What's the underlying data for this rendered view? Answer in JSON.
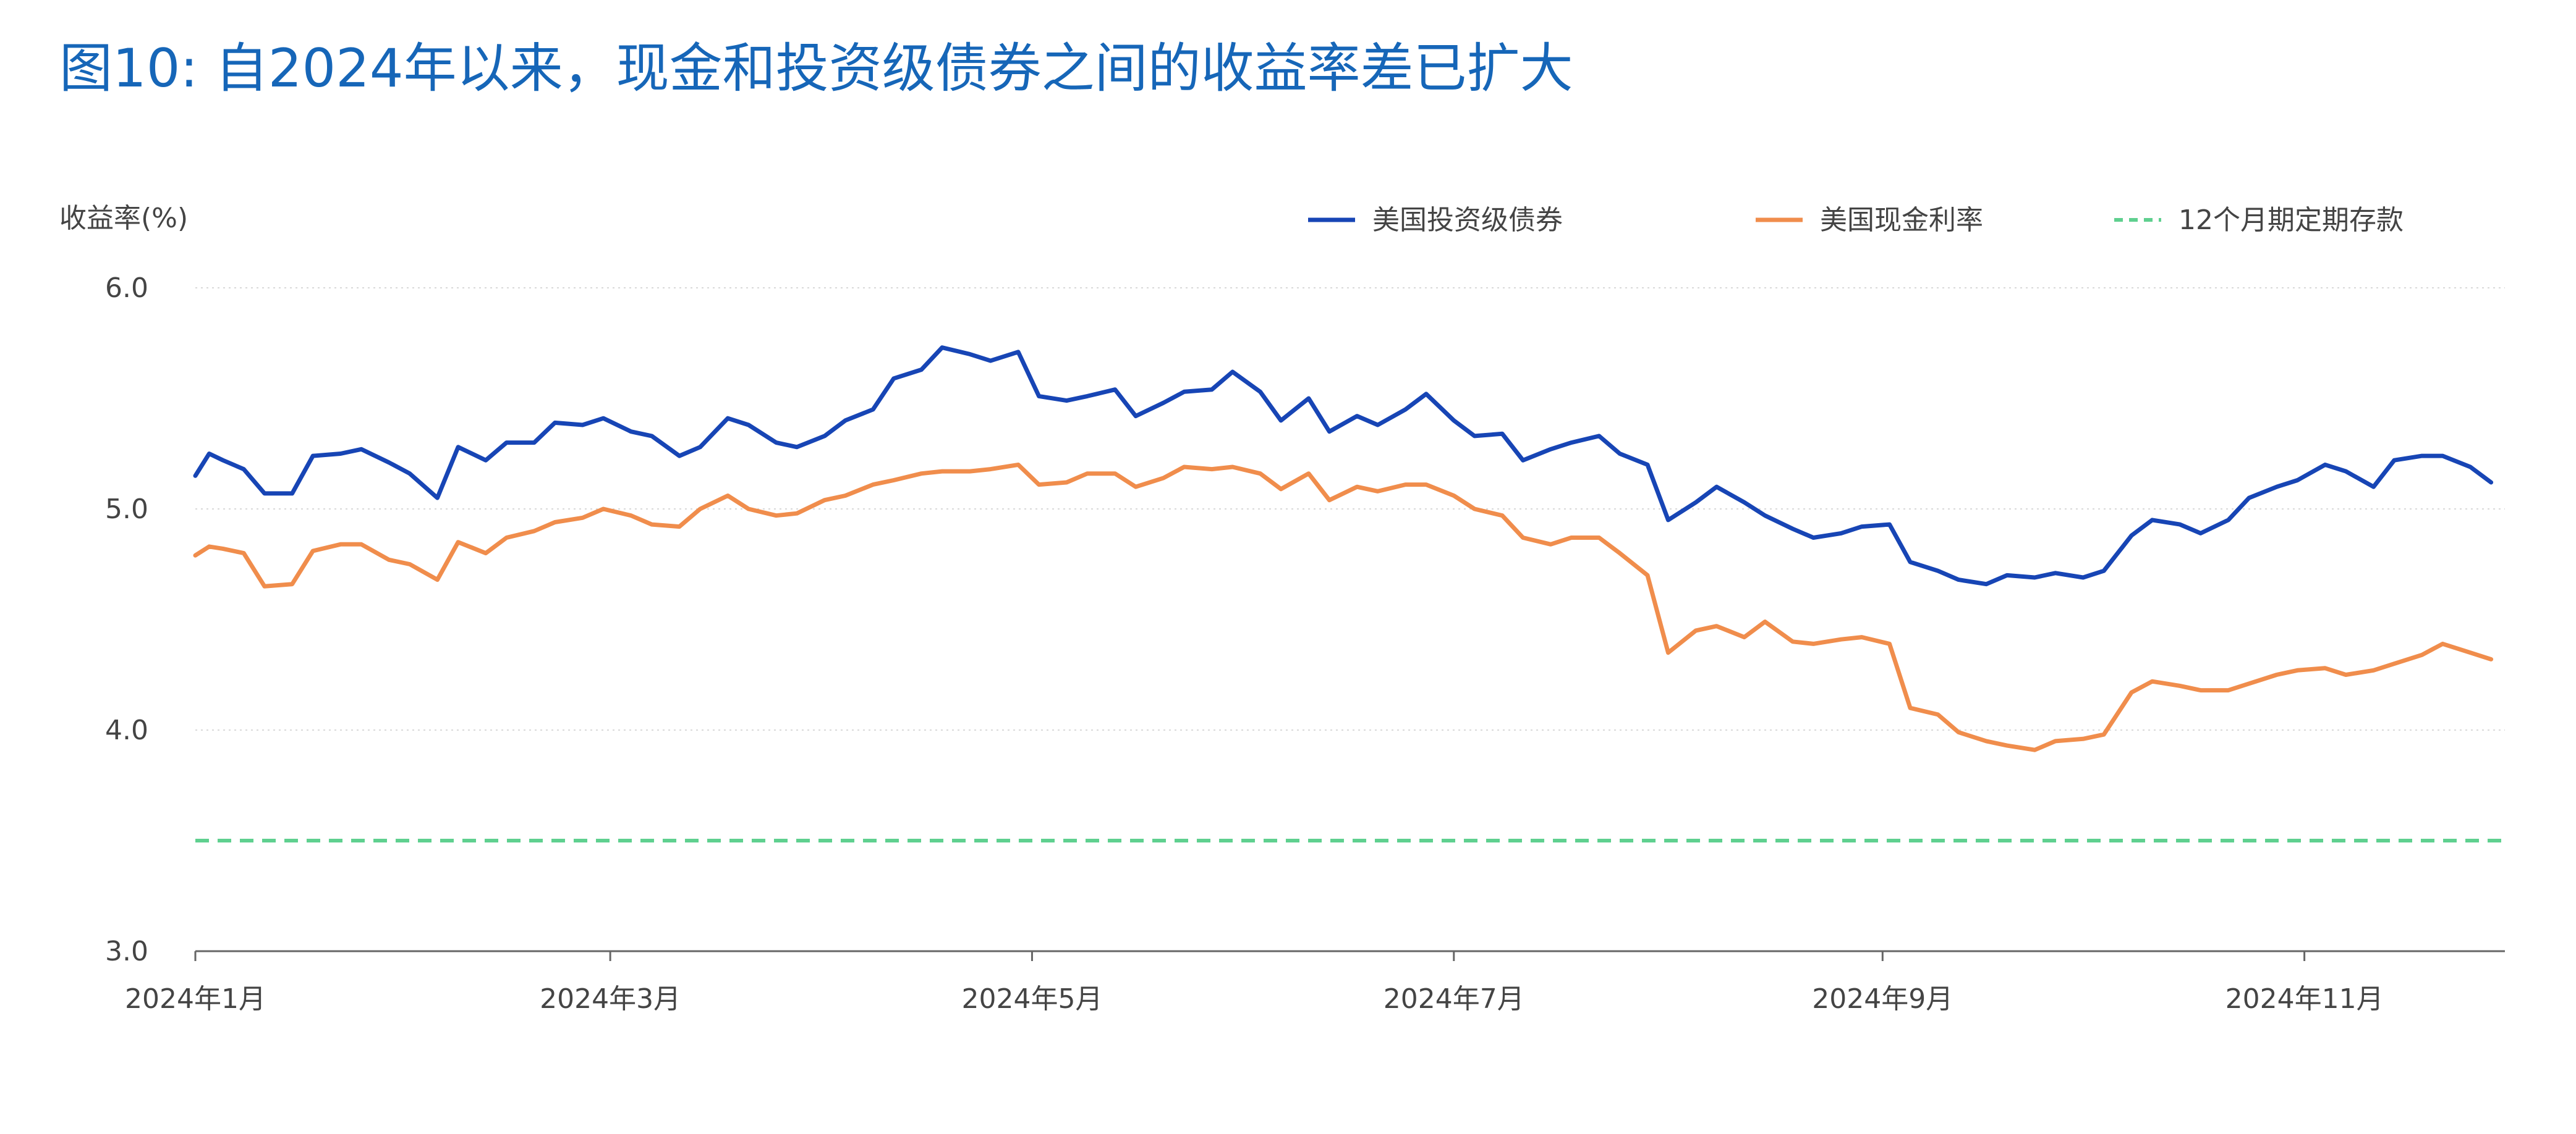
{
  "title": "图10: 自2024年以来，现金和投资级债券之间的收益率差已扩大",
  "colors": {
    "title": "#1666b8",
    "axis_text": "#444444",
    "grid": "#d9d9d9"
  },
  "chart_data": {
    "type": "line",
    "ylabel": "收益率(%)",
    "ylim": [
      3.0,
      6.0
    ],
    "yticks": [
      "3.0",
      "4.0",
      "5.0",
      "6.0"
    ],
    "grid": true,
    "legend_position": "top-right",
    "x_range": [
      "2024-01-01",
      "2024-11-30"
    ],
    "xticks": [
      {
        "date": "2024-01-01",
        "label": "2024年1月"
      },
      {
        "date": "2024-03-01",
        "label": "2024年3月"
      },
      {
        "date": "2024-05-01",
        "label": "2024年5月"
      },
      {
        "date": "2024-07-01",
        "label": "2024年7月"
      },
      {
        "date": "2024-09-01",
        "label": "2024年9月"
      },
      {
        "date": "2024-11-01",
        "label": "2024年11月"
      }
    ],
    "series": [
      {
        "name": "美国投资级债券",
        "color": "#1745b5",
        "dash": false,
        "x": [
          "2024-01-01",
          "2024-01-03",
          "2024-01-05",
          "2024-01-08",
          "2024-01-11",
          "2024-01-15",
          "2024-01-18",
          "2024-01-22",
          "2024-01-25",
          "2024-01-29",
          "2024-02-01",
          "2024-02-05",
          "2024-02-08",
          "2024-02-12",
          "2024-02-15",
          "2024-02-19",
          "2024-02-22",
          "2024-02-26",
          "2024-02-29",
          "2024-03-04",
          "2024-03-07",
          "2024-03-11",
          "2024-03-14",
          "2024-03-18",
          "2024-03-21",
          "2024-03-25",
          "2024-03-28",
          "2024-04-01",
          "2024-04-04",
          "2024-04-08",
          "2024-04-11",
          "2024-04-15",
          "2024-04-18",
          "2024-04-22",
          "2024-04-25",
          "2024-04-29",
          "2024-05-02",
          "2024-05-06",
          "2024-05-09",
          "2024-05-13",
          "2024-05-16",
          "2024-05-20",
          "2024-05-23",
          "2024-05-27",
          "2024-05-30",
          "2024-06-03",
          "2024-06-06",
          "2024-06-10",
          "2024-06-13",
          "2024-06-17",
          "2024-06-20",
          "2024-06-24",
          "2024-06-27",
          "2024-07-01",
          "2024-07-04",
          "2024-07-08",
          "2024-07-11",
          "2024-07-15",
          "2024-07-18",
          "2024-07-22",
          "2024-07-25",
          "2024-07-29",
          "2024-08-01",
          "2024-08-05",
          "2024-08-08",
          "2024-08-12",
          "2024-08-15",
          "2024-08-19",
          "2024-08-22",
          "2024-08-26",
          "2024-08-29",
          "2024-09-02",
          "2024-09-05",
          "2024-09-09",
          "2024-09-12",
          "2024-09-16",
          "2024-09-19",
          "2024-09-23",
          "2024-09-26",
          "2024-09-30",
          "2024-10-03",
          "2024-10-07",
          "2024-10-10",
          "2024-10-14",
          "2024-10-17",
          "2024-10-21",
          "2024-10-24",
          "2024-10-28",
          "2024-10-31",
          "2024-11-04",
          "2024-11-07",
          "2024-11-11",
          "2024-11-14",
          "2024-11-18",
          "2024-11-21",
          "2024-11-25",
          "2024-11-28"
        ],
        "y": [
          5.15,
          5.25,
          5.22,
          5.18,
          5.07,
          5.07,
          5.24,
          5.25,
          5.27,
          5.21,
          5.16,
          5.05,
          5.28,
          5.22,
          5.3,
          5.3,
          5.39,
          5.38,
          5.41,
          5.35,
          5.33,
          5.24,
          5.28,
          5.41,
          5.38,
          5.3,
          5.28,
          5.33,
          5.4,
          5.45,
          5.59,
          5.63,
          5.73,
          5.7,
          5.67,
          5.71,
          5.51,
          5.49,
          5.51,
          5.54,
          5.42,
          5.48,
          5.53,
          5.54,
          5.62,
          5.53,
          5.4,
          5.5,
          5.35,
          5.42,
          5.38,
          5.45,
          5.52,
          5.4,
          5.33,
          5.34,
          5.22,
          5.27,
          5.3,
          5.33,
          5.25,
          5.2,
          4.95,
          5.03,
          5.1,
          5.03,
          4.97,
          4.91,
          4.87,
          4.89,
          4.92,
          4.93,
          4.76,
          4.72,
          4.68,
          4.66,
          4.7,
          4.69,
          4.71,
          4.69,
          4.72,
          4.88,
          4.95,
          4.93,
          4.89,
          4.95,
          5.05,
          5.1,
          5.13,
          5.2,
          5.17,
          5.1,
          5.22,
          5.24,
          5.24,
          5.19,
          5.12
        ]
      },
      {
        "name": "美国现金利率",
        "color": "#f08d4c",
        "dash": false,
        "x": [
          "2024-01-01",
          "2024-01-03",
          "2024-01-05",
          "2024-01-08",
          "2024-01-11",
          "2024-01-15",
          "2024-01-18",
          "2024-01-22",
          "2024-01-25",
          "2024-01-29",
          "2024-02-01",
          "2024-02-05",
          "2024-02-08",
          "2024-02-12",
          "2024-02-15",
          "2024-02-19",
          "2024-02-22",
          "2024-02-26",
          "2024-02-29",
          "2024-03-04",
          "2024-03-07",
          "2024-03-11",
          "2024-03-14",
          "2024-03-18",
          "2024-03-21",
          "2024-03-25",
          "2024-03-28",
          "2024-04-01",
          "2024-04-04",
          "2024-04-08",
          "2024-04-11",
          "2024-04-15",
          "2024-04-18",
          "2024-04-22",
          "2024-04-25",
          "2024-04-29",
          "2024-05-02",
          "2024-05-06",
          "2024-05-09",
          "2024-05-13",
          "2024-05-16",
          "2024-05-20",
          "2024-05-23",
          "2024-05-27",
          "2024-05-30",
          "2024-06-03",
          "2024-06-06",
          "2024-06-10",
          "2024-06-13",
          "2024-06-17",
          "2024-06-20",
          "2024-06-24",
          "2024-06-27",
          "2024-07-01",
          "2024-07-04",
          "2024-07-08",
          "2024-07-11",
          "2024-07-15",
          "2024-07-18",
          "2024-07-22",
          "2024-07-25",
          "2024-07-29",
          "2024-08-01",
          "2024-08-05",
          "2024-08-08",
          "2024-08-12",
          "2024-08-15",
          "2024-08-19",
          "2024-08-22",
          "2024-08-26",
          "2024-08-29",
          "2024-09-02",
          "2024-09-05",
          "2024-09-09",
          "2024-09-12",
          "2024-09-16",
          "2024-09-19",
          "2024-09-23",
          "2024-09-26",
          "2024-09-30",
          "2024-10-03",
          "2024-10-07",
          "2024-10-10",
          "2024-10-14",
          "2024-10-17",
          "2024-10-21",
          "2024-10-24",
          "2024-10-28",
          "2024-10-31",
          "2024-11-04",
          "2024-11-07",
          "2024-11-11",
          "2024-11-14",
          "2024-11-18",
          "2024-11-21",
          "2024-11-25",
          "2024-11-28"
        ],
        "y": [
          4.79,
          4.83,
          4.82,
          4.8,
          4.65,
          4.66,
          4.81,
          4.84,
          4.84,
          4.77,
          4.75,
          4.68,
          4.85,
          4.8,
          4.87,
          4.9,
          4.94,
          4.96,
          5.0,
          4.97,
          4.93,
          4.92,
          5.0,
          5.06,
          5.0,
          4.97,
          4.98,
          5.04,
          5.06,
          5.11,
          5.13,
          5.16,
          5.17,
          5.17,
          5.18,
          5.2,
          5.11,
          5.12,
          5.16,
          5.16,
          5.1,
          5.14,
          5.19,
          5.18,
          5.19,
          5.16,
          5.09,
          5.16,
          5.04,
          5.1,
          5.08,
          5.11,
          5.11,
          5.06,
          5.0,
          4.97,
          4.87,
          4.84,
          4.87,
          4.87,
          4.8,
          4.7,
          4.35,
          4.45,
          4.47,
          4.42,
          4.49,
          4.4,
          4.39,
          4.41,
          4.42,
          4.39,
          4.1,
          4.07,
          3.99,
          3.95,
          3.93,
          3.91,
          3.95,
          3.96,
          3.98,
          4.17,
          4.22,
          4.2,
          4.18,
          4.18,
          4.21,
          4.25,
          4.27,
          4.28,
          4.25,
          4.27,
          4.3,
          4.34,
          4.39,
          4.35,
          4.32
        ]
      },
      {
        "name": "12个月期定期存款",
        "color": "#5fd08f",
        "dash": true,
        "x": [
          "2024-01-01",
          "2024-11-30"
        ],
        "y": [
          3.5,
          3.5
        ]
      }
    ]
  }
}
